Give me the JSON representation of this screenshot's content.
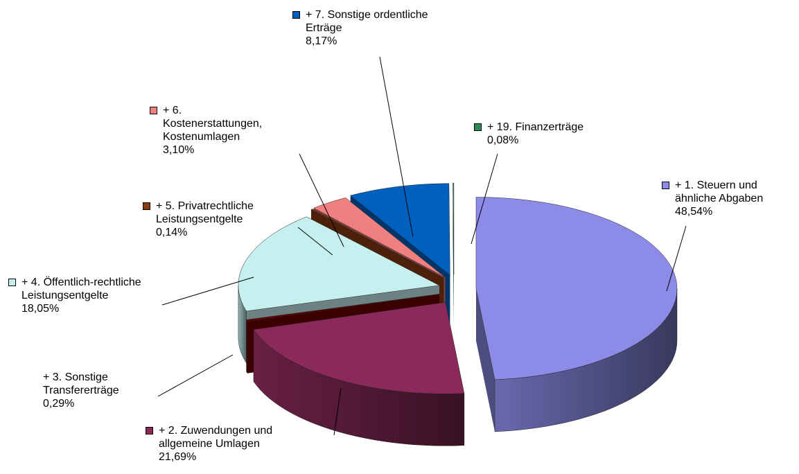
{
  "chart_data": {
    "type": "pie3d",
    "categories": [
      "+ 1. Steuern und ähnliche Abgaben",
      "+ 2. Zuwendungen und allgemeine Umlagen",
      "+ 3. Sonstige Transfererträge",
      "+ 4. Öffentlich-rechtliche Leistungsentgelte",
      "+ 5. Privatrechtliche Leistungsentgelte",
      "+ 6. Kostenerstattungen, Kostenumlagen",
      "+ 7. Sonstige ordentliche Erträge",
      "+ 19. Finanzerträge"
    ],
    "values": [
      48.54,
      21.69,
      0.29,
      18.05,
      0.14,
      3.1,
      8.17,
      0.08
    ],
    "value_labels": [
      "48,54%",
      "21,69%",
      "0,29%",
      "18,05%",
      "0,14%",
      "3,10%",
      "8,17%",
      "0,08%"
    ],
    "colors": [
      "#8c8ce8",
      "#8b2a5a",
      "#6b0000",
      "#c6efef",
      "#8a3a10",
      "#f08080",
      "#0060c0",
      "#2e8b57"
    ]
  }
}
